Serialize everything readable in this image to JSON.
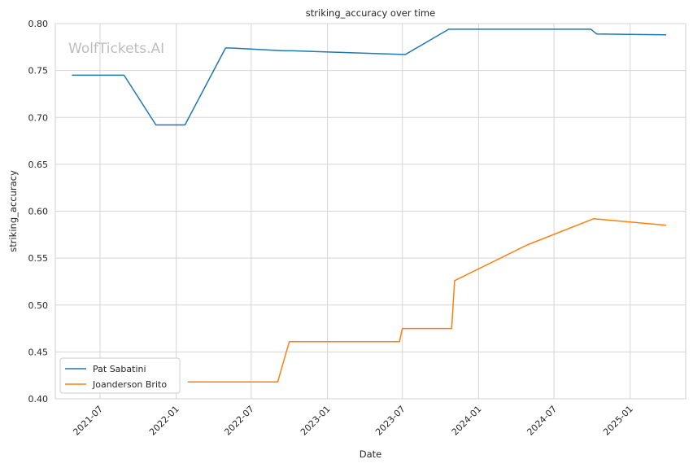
{
  "chart_data": {
    "type": "line",
    "title": "striking_accuracy over time",
    "xlabel": "Date",
    "ylabel": "striking_accuracy",
    "watermark": "WolfTickets.AI",
    "ylim": [
      0.4,
      0.8
    ],
    "yticks": [
      "0.40",
      "0.45",
      "0.50",
      "0.55",
      "0.60",
      "0.65",
      "0.70",
      "0.75",
      "0.80"
    ],
    "xticks": [
      "2021-07",
      "2022-01",
      "2022-07",
      "2023-01",
      "2023-07",
      "2024-01",
      "2024-07",
      "2025-01"
    ],
    "xlim": [
      "2021-03-15",
      "2025-05-15"
    ],
    "grid": true,
    "legend_position": "lower-left",
    "series": [
      {
        "name": "Pat Sabatini",
        "color": "#1f77b4",
        "points": [
          [
            "2021-04-24",
            0.745
          ],
          [
            "2021-08-28",
            0.745
          ],
          [
            "2021-11-13",
            0.692
          ],
          [
            "2022-01-22",
            0.692
          ],
          [
            "2022-04-30",
            0.774
          ],
          [
            "2022-05-14",
            0.774
          ],
          [
            "2022-09-17",
            0.771
          ],
          [
            "2022-10-08",
            0.771
          ],
          [
            "2023-07-08",
            0.767
          ],
          [
            "2023-10-21",
            0.794
          ],
          [
            "2024-09-28",
            0.794
          ],
          [
            "2024-10-12",
            0.789
          ],
          [
            "2025-03-29",
            0.788
          ]
        ]
      },
      {
        "name": "Joanderson Brito",
        "color": "#ff7f0e",
        "points": [
          [
            "2022-01-29",
            0.418
          ],
          [
            "2022-09-03",
            0.418
          ],
          [
            "2022-10-01",
            0.461
          ],
          [
            "2023-06-24",
            0.461
          ],
          [
            "2023-07-01",
            0.475
          ],
          [
            "2023-10-28",
            0.475
          ],
          [
            "2023-11-04",
            0.526
          ],
          [
            "2024-04-27",
            0.564
          ],
          [
            "2024-10-05",
            0.592
          ],
          [
            "2025-03-29",
            0.585
          ]
        ]
      }
    ]
  }
}
